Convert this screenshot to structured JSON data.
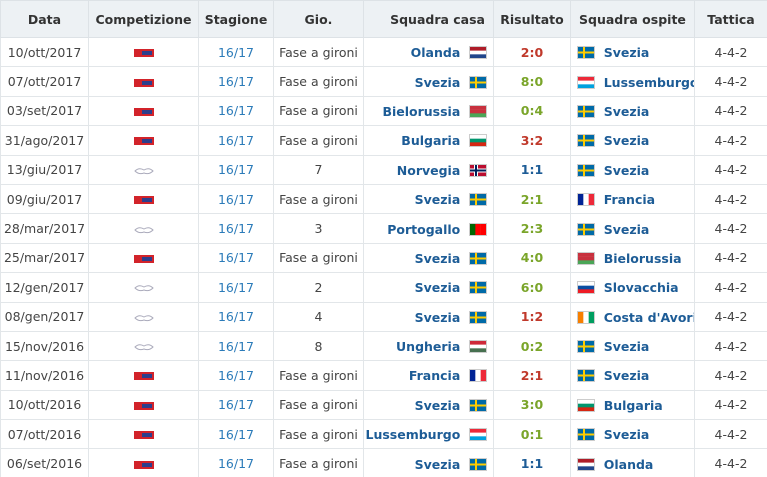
{
  "header": [
    "Data",
    "Competizione",
    "Stagione",
    "Gio.",
    "Squadra casa",
    "Risultato",
    "Squadra ospite",
    "Tattica"
  ],
  "rows": [
    {
      "date": "10/ott/2017",
      "season": "16/17",
      "round": "Fase a gironi",
      "home": "Olanda",
      "home_flag": {
        "layout": "h",
        "colors": [
          "#ae1c28",
          "#ffffff",
          "#21468b"
        ]
      },
      "result": "2:0",
      "away": "Svezia",
      "away_flag": {
        "layout": "cross",
        "colors": [
          "#006aa7",
          "#fecc00"
        ]
      },
      "tactic": "4-4-2"
    },
    {
      "date": "07/ott/2017",
      "season": "16/17",
      "round": "Fase a gironi",
      "home": "Svezia",
      "home_flag": {
        "layout": "cross",
        "colors": [
          "#006aa7",
          "#fecc00"
        ]
      },
      "result": "8:0",
      "away": "Lussemburgo",
      "away_flag": {
        "layout": "h",
        "colors": [
          "#ed2939",
          "#ffffff",
          "#00a1de"
        ]
      },
      "tactic": "4-4-2"
    },
    {
      "date": "03/set/2017",
      "season": "16/17",
      "round": "Fase a gironi",
      "home": "Bielorussia",
      "home_flag": {
        "layout": "h",
        "colors": [
          "#c8313e",
          "#c8313e",
          "#4aa657"
        ]
      },
      "result": "0:4",
      "away": "Svezia",
      "away_flag": {
        "layout": "cross",
        "colors": [
          "#006aa7",
          "#fecc00"
        ]
      },
      "tactic": "4-4-2"
    },
    {
      "date": "31/ago/2017",
      "season": "16/17",
      "round": "Fase a gironi",
      "home": "Bulgaria",
      "home_flag": {
        "layout": "h",
        "colors": [
          "#ffffff",
          "#00966e",
          "#d62612"
        ]
      },
      "result": "3:2",
      "away": "Svezia",
      "away_flag": {
        "layout": "cross",
        "colors": [
          "#006aa7",
          "#fecc00"
        ]
      },
      "tactic": "4-4-2"
    },
    {
      "date": "13/giu/2017",
      "season": "16/17",
      "round": "7",
      "home": "Norvegia",
      "home_flag": {
        "layout": "cross",
        "colors": [
          "#ba0c2f",
          "#00205b"
        ]
      },
      "result": "1:1",
      "away": "Svezia",
      "away_flag": {
        "layout": "cross",
        "colors": [
          "#006aa7",
          "#fecc00"
        ]
      },
      "tactic": "4-4-2"
    },
    {
      "date": "09/giu/2017",
      "season": "16/17",
      "round": "Fase a gironi",
      "home": "Svezia",
      "home_flag": {
        "layout": "cross",
        "colors": [
          "#006aa7",
          "#fecc00"
        ]
      },
      "result": "2:1",
      "away": "Francia",
      "away_flag": {
        "layout": "v",
        "colors": [
          "#002395",
          "#ffffff",
          "#ed2939"
        ]
      },
      "tactic": "4-4-2"
    },
    {
      "date": "28/mar/2017",
      "season": "16/17",
      "round": "3",
      "home": "Portogallo",
      "home_flag": {
        "layout": "v",
        "colors": [
          "#006600",
          "#ff0000",
          "#ff0000"
        ]
      },
      "result": "2:3",
      "away": "Svezia",
      "away_flag": {
        "layout": "cross",
        "colors": [
          "#006aa7",
          "#fecc00"
        ]
      },
      "tactic": "4-4-2"
    },
    {
      "date": "25/mar/2017",
      "season": "16/17",
      "round": "Fase a gironi",
      "home": "Svezia",
      "home_flag": {
        "layout": "cross",
        "colors": [
          "#006aa7",
          "#fecc00"
        ]
      },
      "result": "4:0",
      "away": "Bielorussia",
      "away_flag": {
        "layout": "h",
        "colors": [
          "#c8313e",
          "#c8313e",
          "#4aa657"
        ]
      },
      "tactic": "4-4-2"
    },
    {
      "date": "12/gen/2017",
      "season": "16/17",
      "round": "2",
      "home": "Svezia",
      "home_flag": {
        "layout": "cross",
        "colors": [
          "#006aa7",
          "#fecc00"
        ]
      },
      "result": "6:0",
      "away": "Slovacchia",
      "away_flag": {
        "layout": "h",
        "colors": [
          "#ffffff",
          "#0b4ea2",
          "#ee1c25"
        ]
      },
      "tactic": "4-4-2"
    },
    {
      "date": "08/gen/2017",
      "season": "16/17",
      "round": "4",
      "home": "Svezia",
      "home_flag": {
        "layout": "cross",
        "colors": [
          "#006aa7",
          "#fecc00"
        ]
      },
      "result": "1:2",
      "away": "Costa d'Avorio",
      "away_flag": {
        "layout": "v",
        "colors": [
          "#f77f00",
          "#ffffff",
          "#009e60"
        ]
      },
      "tactic": "4-4-2"
    },
    {
      "date": "15/nov/2016",
      "season": "16/17",
      "round": "8",
      "home": "Ungheria",
      "home_flag": {
        "layout": "h",
        "colors": [
          "#ce2939",
          "#ffffff",
          "#477050"
        ]
      },
      "result": "0:2",
      "away": "Svezia",
      "away_flag": {
        "layout": "cross",
        "colors": [
          "#006aa7",
          "#fecc00"
        ]
      },
      "tactic": "4-4-2"
    },
    {
      "date": "11/nov/2016",
      "season": "16/17",
      "round": "Fase a gironi",
      "home": "Francia",
      "home_flag": {
        "layout": "v",
        "colors": [
          "#002395",
          "#ffffff",
          "#ed2939"
        ]
      },
      "result": "2:1",
      "away": "Svezia",
      "away_flag": {
        "layout": "cross",
        "colors": [
          "#006aa7",
          "#fecc00"
        ]
      },
      "tactic": "4-4-2"
    },
    {
      "date": "10/ott/2016",
      "season": "16/17",
      "round": "Fase a gironi",
      "home": "Svezia",
      "home_flag": {
        "layout": "cross",
        "colors": [
          "#006aa7",
          "#fecc00"
        ]
      },
      "result": "3:0",
      "away": "Bulgaria",
      "away_flag": {
        "layout": "h",
        "colors": [
          "#ffffff",
          "#00966e",
          "#d62612"
        ]
      },
      "tactic": "4-4-2"
    },
    {
      "date": "07/ott/2016",
      "season": "16/17",
      "round": "Fase a gironi",
      "home": "Lussemburgo",
      "home_flag": {
        "layout": "h",
        "colors": [
          "#ed2939",
          "#ffffff",
          "#00a1de"
        ]
      },
      "result": "0:1",
      "away": "Svezia",
      "away_flag": {
        "layout": "cross",
        "colors": [
          "#006aa7",
          "#fecc00"
        ]
      },
      "tactic": "4-4-2"
    },
    {
      "date": "06/set/2016",
      "season": "16/17",
      "round": "Fase a gironi",
      "home": "Svezia",
      "home_flag": {
        "layout": "cross",
        "colors": [
          "#006aa7",
          "#fecc00"
        ]
      },
      "result": "1:1",
      "away": "Olanda",
      "away_flag": {
        "layout": "h",
        "colors": [
          "#ae1c28",
          "#ffffff",
          "#21468b"
        ]
      },
      "tactic": "4-4-2"
    }
  ]
}
